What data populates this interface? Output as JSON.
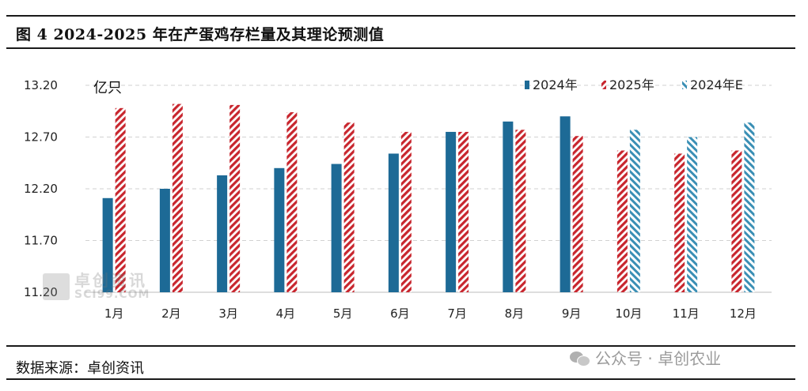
{
  "header": {
    "title": "图 4 2024-2025 年在产蛋鸡存栏量及其理论预测值"
  },
  "footer": {
    "source": "数据来源：卓创资讯",
    "wechat_label": "公众号 · 卓创农业"
  },
  "watermark": {
    "name": "卓创资讯",
    "domain": "SCI99.COM"
  },
  "colors": {
    "s2024": "#1d6a96",
    "s2025": "#c8262e",
    "s2024e": "#3a8fb5"
  },
  "chart_data": {
    "type": "bar",
    "unit_label": "亿只",
    "categories": [
      "1月",
      "2月",
      "3月",
      "4月",
      "5月",
      "6月",
      "7月",
      "8月",
      "9月",
      "10月",
      "11月",
      "12月"
    ],
    "ylim": [
      11.2,
      13.2
    ],
    "yticks": [
      "11.20",
      "11.70",
      "12.20",
      "12.70",
      "13.20"
    ],
    "grid": true,
    "legend_position": "top-right",
    "series": [
      {
        "name": "2024年",
        "style": "solid",
        "values": [
          12.11,
          12.2,
          12.33,
          12.4,
          12.44,
          12.54,
          12.75,
          12.85,
          12.9,
          null,
          null,
          null
        ]
      },
      {
        "name": "2025年",
        "style": "hatched",
        "values": [
          12.98,
          13.02,
          13.01,
          12.94,
          12.84,
          12.75,
          12.75,
          12.77,
          12.71,
          12.57,
          12.54,
          12.57
        ]
      },
      {
        "name": "2024年E",
        "style": "hatched",
        "values": [
          null,
          null,
          null,
          null,
          null,
          null,
          null,
          null,
          null,
          12.77,
          12.7,
          12.84
        ]
      }
    ]
  }
}
